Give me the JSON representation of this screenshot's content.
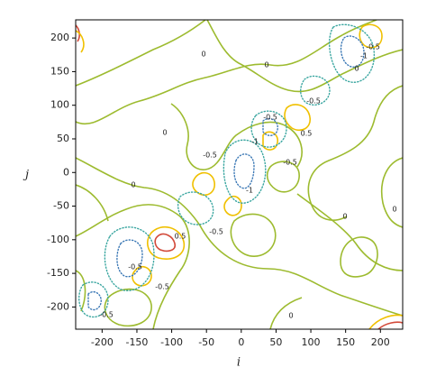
{
  "chart_data": {
    "type": "contour",
    "x_label": "i",
    "y_label": "j",
    "xlim": [
      -238,
      232
    ],
    "ylim": [
      -233,
      227
    ],
    "xticks": [
      -200,
      -150,
      -100,
      -50,
      0,
      50,
      100,
      150,
      200
    ],
    "yticks": [
      -200,
      -150,
      -100,
      -50,
      0,
      50,
      100,
      150,
      200
    ],
    "levels": [
      -1,
      -0.5,
      0,
      0.5,
      1
    ],
    "level_colors": [
      "#3b78b5",
      "#3aa6a0",
      "#9dbb2f",
      "#f0c000",
      "#d24a3a"
    ],
    "negative_style": "dotted"
  }
}
